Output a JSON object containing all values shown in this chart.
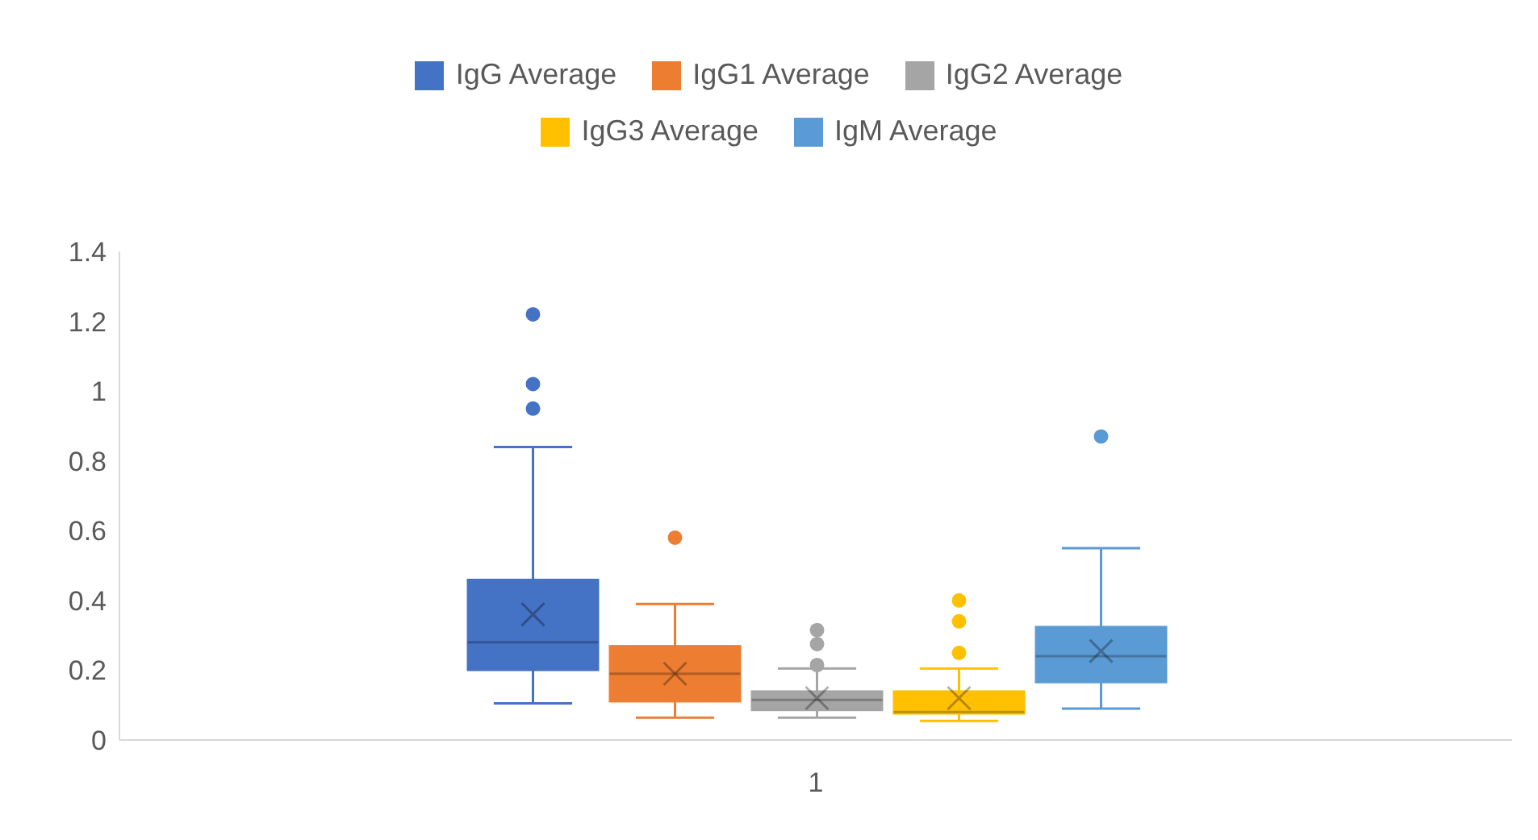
{
  "chart_data": {
    "type": "box",
    "categories": [
      "1"
    ],
    "ylim": [
      0,
      1.4
    ],
    "yticks": [
      0,
      0.2,
      0.4,
      0.6,
      0.8,
      1,
      1.2,
      1.4
    ],
    "grid": false,
    "legend": "top",
    "series": [
      {
        "name": "IgG Average",
        "color": "#4472c4",
        "boxes": [
          {
            "low": 0.105,
            "q1": 0.2,
            "median": 0.28,
            "q3": 0.46,
            "high": 0.84,
            "mean": 0.36,
            "outliers": [
              0.95,
              1.02,
              1.22
            ]
          }
        ]
      },
      {
        "name": "IgG1 Average",
        "color": "#ed7d31",
        "boxes": [
          {
            "low": 0.064,
            "q1": 0.11,
            "median": 0.19,
            "q3": 0.27,
            "high": 0.39,
            "mean": 0.19,
            "outliers": [
              0.58
            ]
          }
        ]
      },
      {
        "name": "IgG2 Average",
        "color": "#a5a5a5",
        "boxes": [
          {
            "low": 0.064,
            "q1": 0.085,
            "median": 0.115,
            "q3": 0.14,
            "high": 0.205,
            "mean": 0.12,
            "outliers": [
              0.215,
              0.275,
              0.315
            ]
          }
        ]
      },
      {
        "name": "IgG3 Average",
        "color": "#ffc000",
        "boxes": [
          {
            "low": 0.055,
            "q1": 0.075,
            "median": 0.08,
            "q3": 0.14,
            "high": 0.205,
            "mean": 0.12,
            "outliers": [
              0.25,
              0.34,
              0.4
            ]
          }
        ]
      },
      {
        "name": "IgM Average",
        "color": "#5b9bd5",
        "boxes": [
          {
            "low": 0.09,
            "q1": 0.165,
            "median": 0.24,
            "q3": 0.325,
            "high": 0.55,
            "mean": 0.255,
            "outliers": [
              0.87
            ]
          }
        ]
      }
    ]
  }
}
